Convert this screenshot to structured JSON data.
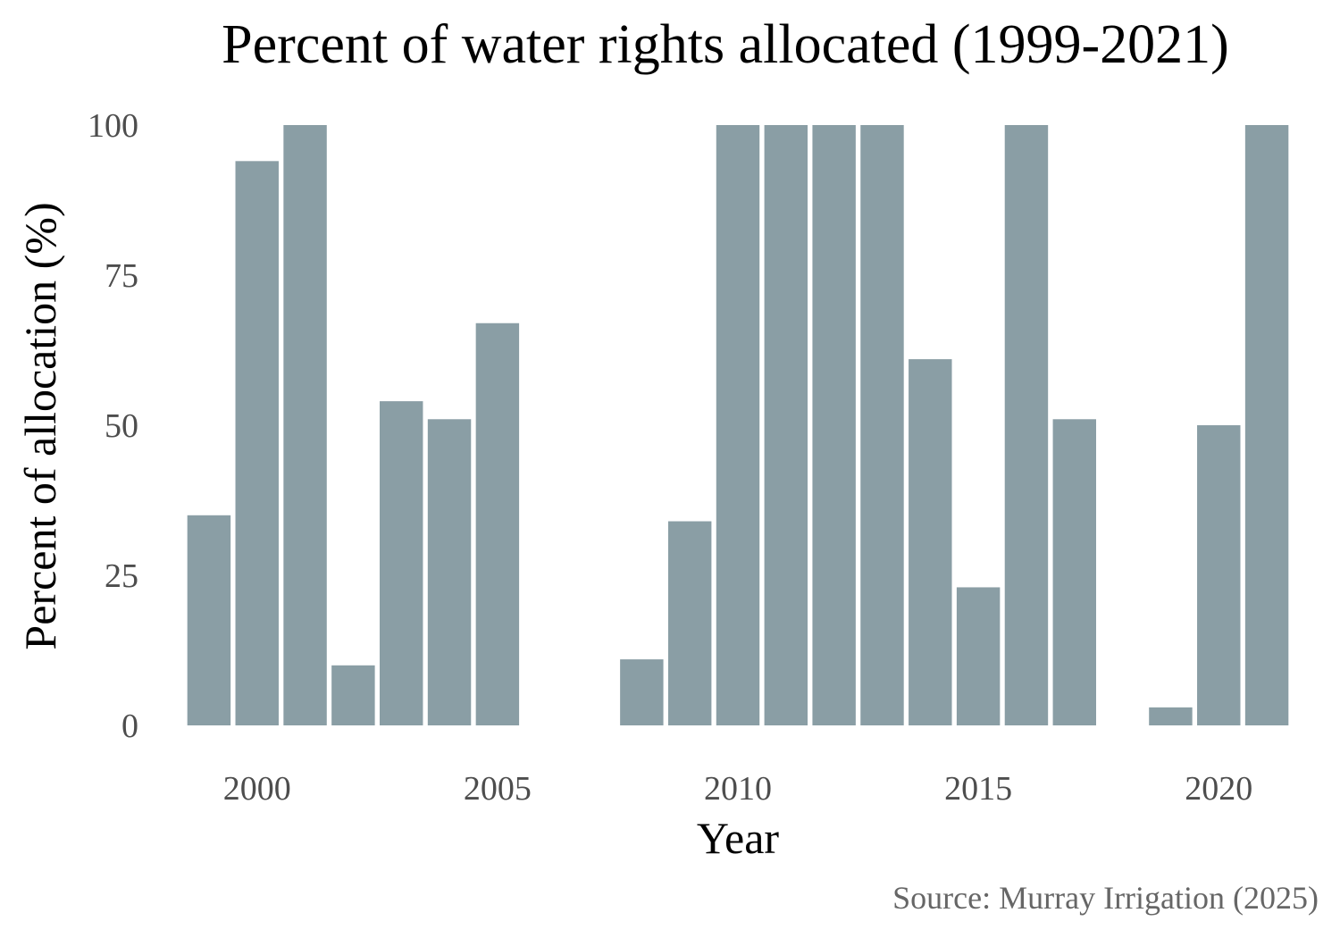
{
  "chart_data": {
    "type": "bar",
    "title": "Percent of water rights allocated (1999-2021)",
    "xlabel": "Year",
    "ylabel": "Percent of allocation (%)",
    "caption": "Source: Murray Irrigation (2025)",
    "x": [
      1999,
      2000,
      2001,
      2002,
      2003,
      2004,
      2005,
      2006,
      2007,
      2008,
      2009,
      2010,
      2011,
      2012,
      2013,
      2014,
      2015,
      2016,
      2017,
      2018,
      2019,
      2020,
      2021
    ],
    "values": [
      35,
      94,
      100,
      10,
      54,
      51,
      67,
      0,
      0,
      11,
      34,
      100,
      100,
      100,
      100,
      61,
      23,
      100,
      51,
      0,
      3,
      50,
      100
    ],
    "xlim": [
      1998.5,
      2021.5
    ],
    "ylim": [
      0,
      100
    ],
    "x_ticks": [
      "2000",
      "2005",
      "2010",
      "2015",
      "2020"
    ],
    "y_ticks": [
      "0",
      "25",
      "50",
      "75",
      "100"
    ],
    "bar_color": "#8a9ea5",
    "grid": false,
    "legend": "none"
  }
}
